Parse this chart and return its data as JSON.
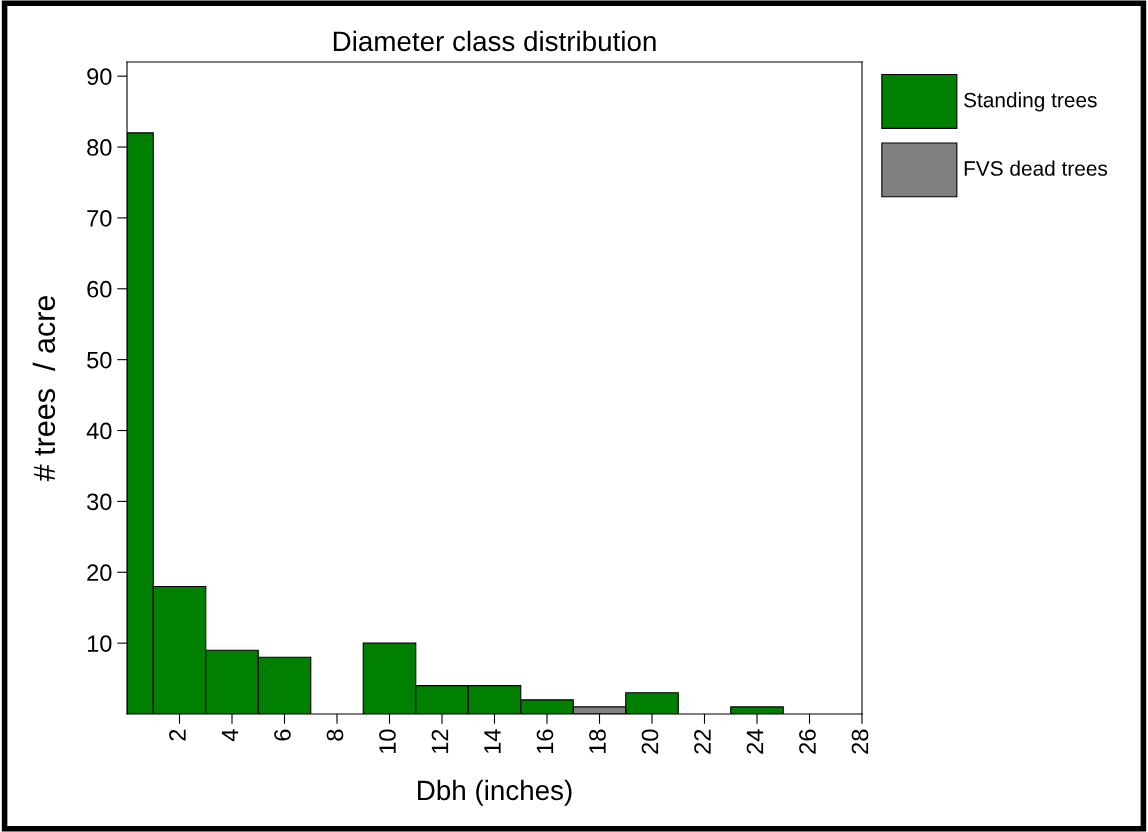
{
  "chart_data": {
    "type": "histogram",
    "title": "Diameter class distribution",
    "xlabel": "Dbh (inches)",
    "ylabel": "# trees  / acre",
    "bins": [
      0,
      1,
      3,
      5,
      7,
      9,
      11,
      13,
      15,
      17,
      19,
      21,
      23,
      25
    ],
    "series": [
      {
        "name": "Standing trees",
        "color": "#008000",
        "values": [
          82,
          18,
          9,
          8,
          null,
          10,
          4,
          4,
          2,
          null,
          3,
          null,
          1
        ]
      },
      {
        "name": "FVS dead trees",
        "color": "#808080",
        "values": [
          null,
          null,
          null,
          null,
          null,
          null,
          null,
          null,
          null,
          1,
          null,
          null,
          null
        ]
      }
    ],
    "xlim": [
      0,
      28
    ],
    "xticks": [
      2,
      4,
      6,
      8,
      10,
      12,
      14,
      16,
      18,
      20,
      22,
      24,
      26,
      28
    ],
    "ylim": [
      0,
      92
    ],
    "yticks": [
      10,
      20,
      30,
      40,
      50,
      60,
      70,
      80,
      90
    ],
    "grid": false,
    "legend": "right"
  }
}
